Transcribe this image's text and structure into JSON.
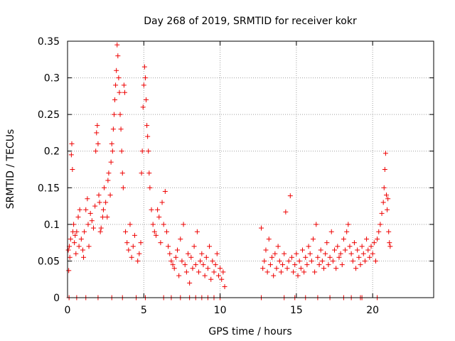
{
  "chart_data": {
    "type": "scatter",
    "title": "Day 268 of 2019, SRMTID for receiver kokr",
    "xlabel": "GPS time / hours",
    "ylabel": "SRMTID / TECUs",
    "xlim": [
      0,
      24
    ],
    "ylim": [
      0,
      0.35
    ],
    "xticks": [
      0,
      5,
      10,
      15,
      20
    ],
    "xtick_labels": [
      "0",
      "5",
      "10",
      "15",
      "20"
    ],
    "yticks": [
      0,
      0.05,
      0.1,
      0.15,
      0.2,
      0.25,
      0.3,
      0.35
    ],
    "ytick_labels": [
      "0",
      "0.05",
      "0.1",
      "0.15",
      "0.2",
      "0.25",
      "0.3",
      "0.35"
    ],
    "grid": true,
    "marker": "plus",
    "marker_color": "#ee0000",
    "series": [
      {
        "name": "SRMTID",
        "points": [
          [
            0.05,
            0.065
          ],
          [
            0.08,
            0.037
          ],
          [
            0.12,
            0.07
          ],
          [
            0.15,
            0.055
          ],
          [
            0.2,
            0.08
          ],
          [
            0.25,
            0.195
          ],
          [
            0.28,
            0.21
          ],
          [
            0.32,
            0.175
          ],
          [
            0.35,
            0.09
          ],
          [
            0.4,
            0.1
          ],
          [
            0.45,
            0.075
          ],
          [
            0.5,
            0.085
          ],
          [
            0.55,
            0.06
          ],
          [
            0.6,
            0.09
          ],
          [
            0.7,
            0.11
          ],
          [
            0.75,
            0.07
          ],
          [
            0.8,
            0.12
          ],
          [
            0.9,
            0.08
          ],
          [
            1.0,
            0.065
          ],
          [
            1.05,
            0.055
          ],
          [
            1.1,
            0.09
          ],
          [
            1.2,
            0.12
          ],
          [
            1.3,
            0.135
          ],
          [
            1.35,
            0.1
          ],
          [
            1.4,
            0.07
          ],
          [
            1.5,
            0.115
          ],
          [
            1.6,
            0.105
          ],
          [
            1.7,
            0.095
          ],
          [
            1.8,
            0.125
          ],
          [
            1.85,
            0.2
          ],
          [
            1.9,
            0.225
          ],
          [
            1.95,
            0.235
          ],
          [
            2.0,
            0.21
          ],
          [
            2.05,
            0.14
          ],
          [
            2.1,
            0.13
          ],
          [
            2.15,
            0.09
          ],
          [
            2.2,
            0.095
          ],
          [
            2.3,
            0.11
          ],
          [
            2.35,
            0.12
          ],
          [
            2.4,
            0.15
          ],
          [
            2.5,
            0.13
          ],
          [
            2.6,
            0.11
          ],
          [
            2.65,
            0.16
          ],
          [
            2.7,
            0.17
          ],
          [
            2.8,
            0.14
          ],
          [
            2.85,
            0.185
          ],
          [
            2.9,
            0.21
          ],
          [
            2.95,
            0.2
          ],
          [
            3.0,
            0.23
          ],
          [
            3.05,
            0.25
          ],
          [
            3.1,
            0.27
          ],
          [
            3.15,
            0.29
          ],
          [
            3.2,
            0.31
          ],
          [
            3.25,
            0.345
          ],
          [
            3.3,
            0.33
          ],
          [
            3.35,
            0.3
          ],
          [
            3.4,
            0.28
          ],
          [
            3.45,
            0.25
          ],
          [
            3.5,
            0.23
          ],
          [
            3.55,
            0.2
          ],
          [
            3.6,
            0.17
          ],
          [
            3.65,
            0.15
          ],
          [
            3.7,
            0.29
          ],
          [
            3.75,
            0.28
          ],
          [
            3.8,
            0.09
          ],
          [
            3.9,
            0.075
          ],
          [
            4.0,
            0.065
          ],
          [
            4.1,
            0.1
          ],
          [
            4.2,
            0.055
          ],
          [
            4.3,
            0.07
          ],
          [
            4.4,
            0.085
          ],
          [
            4.6,
            0.05
          ],
          [
            4.7,
            0.06
          ],
          [
            4.8,
            0.075
          ],
          [
            4.85,
            0.17
          ],
          [
            4.9,
            0.2
          ],
          [
            4.95,
            0.26
          ],
          [
            5.0,
            0.29
          ],
          [
            5.05,
            0.315
          ],
          [
            5.1,
            0.3
          ],
          [
            5.15,
            0.27
          ],
          [
            5.2,
            0.235
          ],
          [
            5.25,
            0.22
          ],
          [
            5.3,
            0.2
          ],
          [
            5.35,
            0.17
          ],
          [
            5.4,
            0.15
          ],
          [
            5.5,
            0.12
          ],
          [
            5.6,
            0.1
          ],
          [
            5.7,
            0.09
          ],
          [
            5.8,
            0.085
          ],
          [
            5.9,
            0.12
          ],
          [
            6.0,
            0.11
          ],
          [
            6.1,
            0.075
          ],
          [
            6.2,
            0.13
          ],
          [
            6.3,
            0.1
          ],
          [
            6.4,
            0.145
          ],
          [
            6.5,
            0.09
          ],
          [
            6.6,
            0.07
          ],
          [
            6.7,
            0.06
          ],
          [
            6.8,
            0.05
          ],
          [
            6.9,
            0.045
          ],
          [
            7.0,
            0.04
          ],
          [
            7.1,
            0.055
          ],
          [
            7.2,
            0.065
          ],
          [
            7.3,
            0.03
          ],
          [
            7.4,
            0.08
          ],
          [
            7.5,
            0.05
          ],
          [
            7.6,
            0.1
          ],
          [
            7.7,
            0.045
          ],
          [
            7.8,
            0.035
          ],
          [
            7.9,
            0.06
          ],
          [
            8.0,
            0.02
          ],
          [
            8.1,
            0.055
          ],
          [
            8.2,
            0.04
          ],
          [
            8.3,
            0.07
          ],
          [
            8.4,
            0.045
          ],
          [
            8.5,
            0.09
          ],
          [
            8.6,
            0.035
          ],
          [
            8.7,
            0.05
          ],
          [
            8.8,
            0.06
          ],
          [
            8.9,
            0.045
          ],
          [
            9.0,
            0.03
          ],
          [
            9.1,
            0.055
          ],
          [
            9.2,
            0.04
          ],
          [
            9.3,
            0.07
          ],
          [
            9.4,
            0.025
          ],
          [
            9.5,
            0.05
          ],
          [
            9.6,
            0.035
          ],
          [
            9.7,
            0.045
          ],
          [
            9.8,
            0.06
          ],
          [
            9.9,
            0.03
          ],
          [
            10.0,
            0.04
          ],
          [
            10.1,
            0.025
          ],
          [
            10.2,
            0.035
          ],
          [
            10.3,
            0.015
          ],
          [
            12.7,
            0.095
          ],
          [
            12.8,
            0.04
          ],
          [
            12.9,
            0.05
          ],
          [
            13.0,
            0.065
          ],
          [
            13.1,
            0.035
          ],
          [
            13.2,
            0.08
          ],
          [
            13.3,
            0.045
          ],
          [
            13.4,
            0.055
          ],
          [
            13.5,
            0.03
          ],
          [
            13.6,
            0.06
          ],
          [
            13.7,
            0.04
          ],
          [
            13.8,
            0.07
          ],
          [
            13.9,
            0.05
          ],
          [
            14.0,
            0.035
          ],
          [
            14.1,
            0.045
          ],
          [
            14.2,
            0.06
          ],
          [
            14.3,
            0.117
          ],
          [
            14.4,
            0.04
          ],
          [
            14.5,
            0.05
          ],
          [
            14.6,
            0.139
          ],
          [
            14.7,
            0.055
          ],
          [
            14.8,
            0.035
          ],
          [
            14.9,
            0.045
          ],
          [
            15.0,
            0.06
          ],
          [
            15.1,
            0.03
          ],
          [
            15.2,
            0.05
          ],
          [
            15.3,
            0.04
          ],
          [
            15.4,
            0.065
          ],
          [
            15.5,
            0.035
          ],
          [
            15.6,
            0.055
          ],
          [
            15.7,
            0.045
          ],
          [
            15.8,
            0.07
          ],
          [
            15.9,
            0.06
          ],
          [
            16.0,
            0.05
          ],
          [
            16.1,
            0.08
          ],
          [
            16.2,
            0.035
          ],
          [
            16.3,
            0.1
          ],
          [
            16.4,
            0.055
          ],
          [
            16.5,
            0.045
          ],
          [
            16.6,
            0.065
          ],
          [
            16.7,
            0.05
          ],
          [
            16.8,
            0.04
          ],
          [
            16.9,
            0.06
          ],
          [
            17.0,
            0.075
          ],
          [
            17.1,
            0.045
          ],
          [
            17.2,
            0.055
          ],
          [
            17.3,
            0.09
          ],
          [
            17.4,
            0.05
          ],
          [
            17.5,
            0.065
          ],
          [
            17.6,
            0.04
          ],
          [
            17.7,
            0.07
          ],
          [
            17.8,
            0.055
          ],
          [
            17.9,
            0.06
          ],
          [
            18.0,
            0.045
          ],
          [
            18.1,
            0.08
          ],
          [
            18.2,
            0.065
          ],
          [
            18.3,
            0.09
          ],
          [
            18.4,
            0.1
          ],
          [
            18.5,
            0.07
          ],
          [
            18.6,
            0.06
          ],
          [
            18.7,
            0.05
          ],
          [
            18.8,
            0.075
          ],
          [
            18.9,
            0.04
          ],
          [
            19.0,
            0.065
          ],
          [
            19.1,
            0.055
          ],
          [
            19.2,
            0.045
          ],
          [
            19.3,
            0.07
          ],
          [
            19.4,
            0.06
          ],
          [
            19.5,
            0.05
          ],
          [
            19.6,
            0.08
          ],
          [
            19.7,
            0.065
          ],
          [
            19.8,
            0.055
          ],
          [
            19.9,
            0.07
          ],
          [
            20.0,
            0.06
          ],
          [
            20.1,
            0.075
          ],
          [
            20.2,
            0.05
          ],
          [
            20.3,
            0.08
          ],
          [
            20.4,
            0.09
          ],
          [
            20.5,
            0.1
          ],
          [
            20.6,
            0.115
          ],
          [
            20.7,
            0.13
          ],
          [
            20.75,
            0.15
          ],
          [
            20.8,
            0.175
          ],
          [
            20.85,
            0.197
          ],
          [
            20.9,
            0.14
          ],
          [
            20.95,
            0.12
          ],
          [
            21.0,
            0.135
          ],
          [
            21.05,
            0.09
          ],
          [
            21.1,
            0.075
          ],
          [
            21.15,
            0.07
          ]
        ]
      }
    ],
    "zero_points_x": [
      0.1,
      0.6,
      1.2,
      2.0,
      2.9,
      3.6,
      4.5,
      5.1,
      6.3,
      6.8,
      7.4,
      8.0,
      8.4,
      8.8,
      9.2,
      9.6,
      10.0,
      12.7,
      14.2,
      14.9,
      15.6,
      16.4,
      17.2,
      18.1,
      18.6,
      19.2,
      19.3,
      20.3
    ]
  }
}
